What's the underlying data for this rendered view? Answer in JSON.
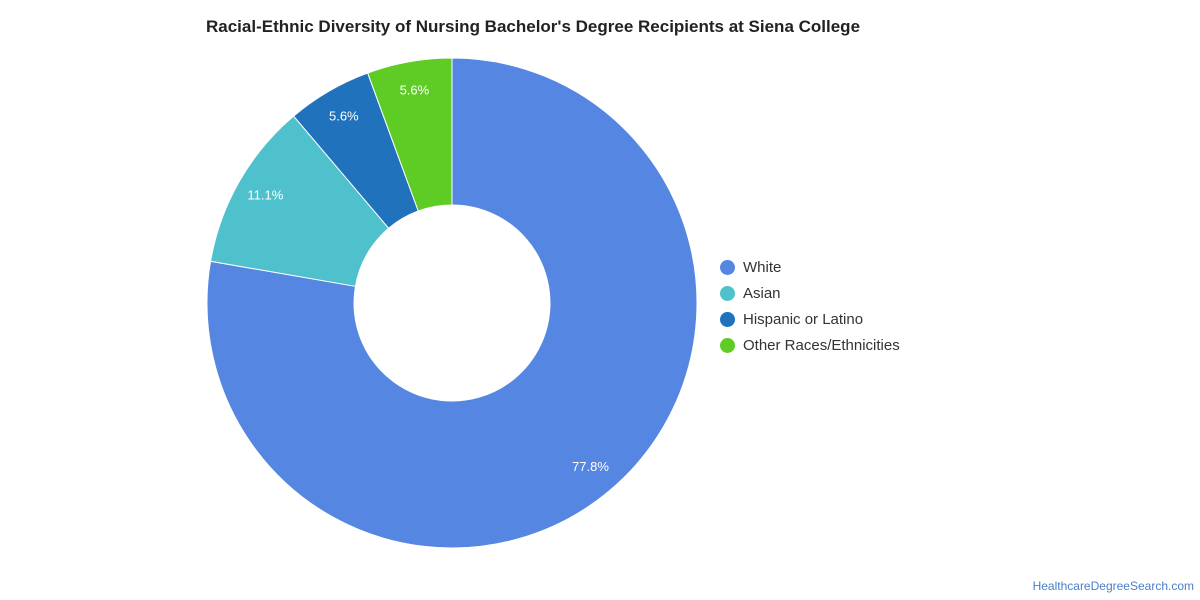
{
  "chart_data": {
    "type": "pie",
    "title": "Racial-Ethnic Diversity of Nursing Bachelor's Degree Recipients at Siena College",
    "donut": true,
    "legend_position": "right",
    "slices": [
      {
        "label": "White",
        "value": 77.8,
        "display": "77.8%",
        "color": "#5486e2"
      },
      {
        "label": "Asian",
        "value": 11.1,
        "display": "11.1%",
        "color": "#4fc1cd"
      },
      {
        "label": "Hispanic or Latino",
        "value": 5.6,
        "display": "5.6%",
        "color": "#1f72bb"
      },
      {
        "label": "Other Races/Ethnicities",
        "value": 5.6,
        "display": "5.6%",
        "color": "#5fcc26"
      }
    ]
  },
  "source": {
    "text": "HealthcareDegreeSearch.com"
  }
}
